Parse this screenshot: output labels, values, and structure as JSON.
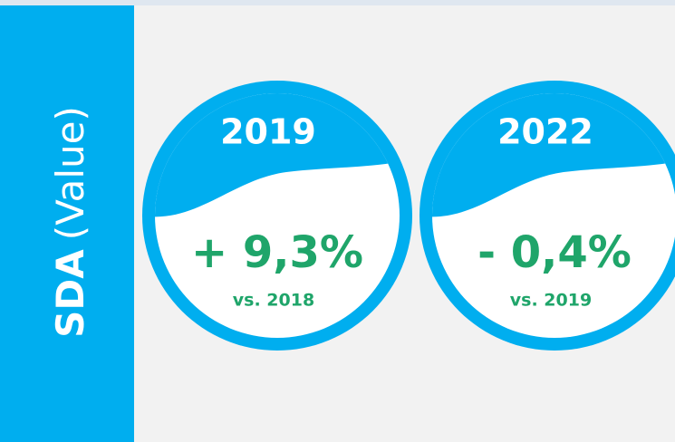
{
  "sidebar": {
    "label_bold": "SDA",
    "label_rest": "(Value)"
  },
  "kpis": [
    {
      "year": "2019",
      "value": "+ 9,3%",
      "comparison": "vs. 2018"
    },
    {
      "year": "2022",
      "value": "- 0,4%",
      "comparison": "vs. 2019"
    }
  ]
}
